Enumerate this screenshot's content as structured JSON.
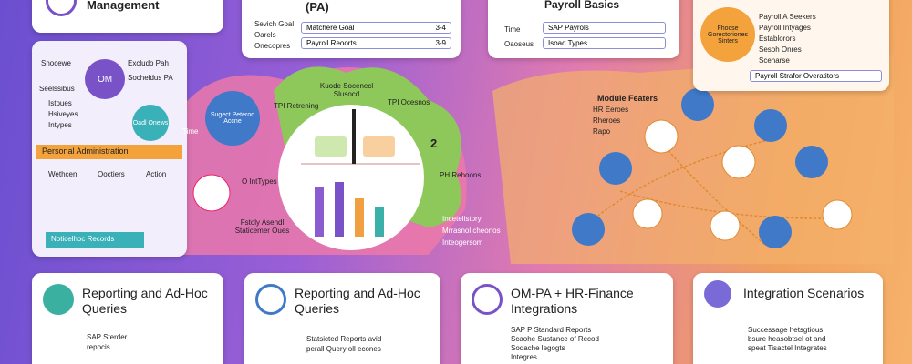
{
  "top_cards": [
    {
      "title": "Management"
    },
    {
      "title": "(PA)",
      "side": [
        "Sevich Goal",
        "Oarels",
        "Onecopres"
      ],
      "rows": [
        [
          "Matchere Goal",
          "3-4"
        ],
        [
          "Payroll Reoorts",
          "3-9"
        ]
      ]
    },
    {
      "title": "Payroll Basics",
      "side": [
        "Time",
        "Oaoseus"
      ],
      "rows": [
        "SAP Payrols",
        "Isoad Types"
      ]
    },
    {
      "badge": [
        "Fhocse",
        "Gorectoriones",
        "Sinters"
      ],
      "bullets": [
        "Payroll A Seekers",
        "Payroll Intyages",
        "Establorors",
        "Sesoh Onres",
        "Scenarse"
      ],
      "footer": "Payroll Strafor Overatitors"
    }
  ],
  "left_panel": {
    "labels": [
      "Snocewe",
      "Seelssibus",
      "Istpues",
      "Hsiveyes",
      "Intypes"
    ],
    "circle": "OM",
    "right_labels": [
      "Excludo Pah",
      "Socheldus PA"
    ],
    "bar": "Personal Administration",
    "columns": [
      "Wethcen",
      "Ooctiers",
      "Action"
    ],
    "footer": "Noticelhoc Records"
  },
  "center": {
    "bubbles": [
      "Sugect Peterod Accne",
      "Time",
      "Oadl Onews",
      "TPI Retrening",
      "Kuode Socenecl Slusocd",
      "TPI Ocesnos",
      "2",
      "PH Rehoons",
      "O IntTypes"
    ],
    "bottom_label": "Fstoly Asendl Staticemer Oues",
    "side_list": [
      "Incetelistory",
      "Mrrasnol cheonos",
      "Inteogersom"
    ]
  },
  "right_panel": {
    "title": "Module Featers",
    "lines": [
      "HR Eeroes",
      "Rheroes",
      "Rapo"
    ]
  },
  "bottom_cards": [
    {
      "title": "Reporting and Ad-Hoc Queries",
      "text": [
        "SAP Sterder",
        "repocis"
      ]
    },
    {
      "title": "Reporting and Ad-Hoc Queries",
      "text": [
        "Statsicted Reports avid",
        "perall Query oll econes"
      ]
    },
    {
      "title": "OM-PA + HR-Finance Integrations",
      "text": [
        "SAP P Standard Reports",
        "Scaohe Sustance of Recod",
        "Sodache legogts",
        "Integres"
      ]
    },
    {
      "title": "Integration Scenarios",
      "text": [
        "Successage hetsgtious",
        "bsure heasobtsel ot and",
        "speat Tisactel Integrates"
      ]
    }
  ]
}
